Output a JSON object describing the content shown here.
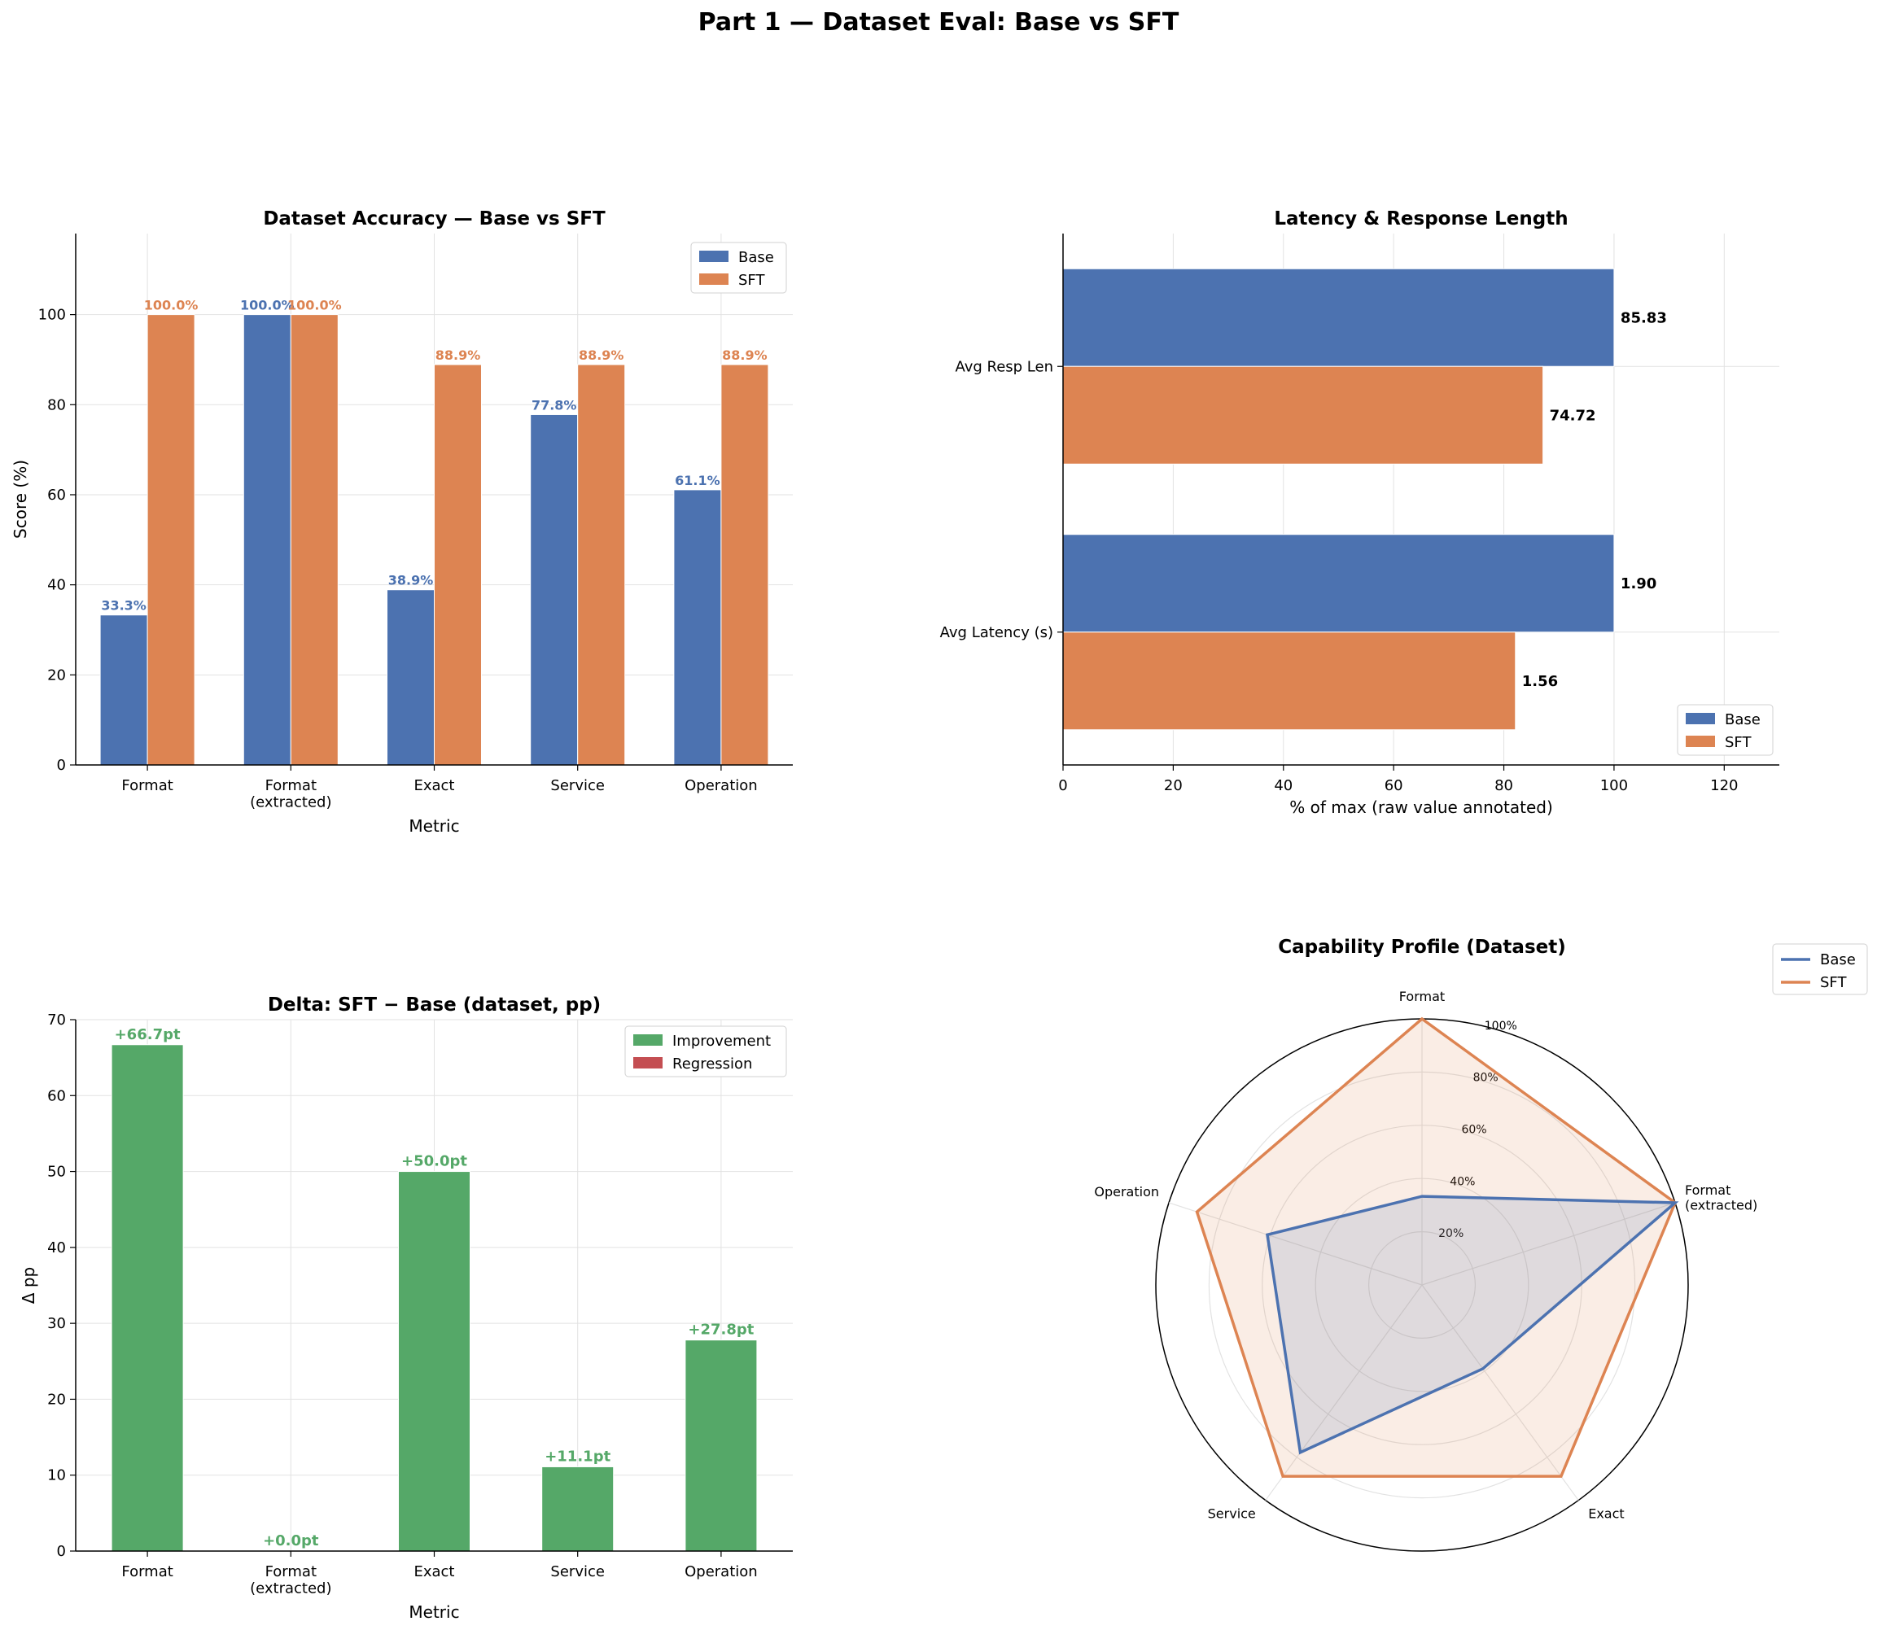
{
  "suptitle": "Part 1 — Dataset Eval: Base vs SFT",
  "colors": {
    "base": "#4c72b0",
    "sft": "#dd8452",
    "improvement": "#55a868",
    "regression": "#c44e52"
  },
  "chart_data": [
    {
      "id": "accuracy",
      "type": "bar",
      "title": "Dataset Accuracy — Base vs SFT",
      "xlabel": "Metric",
      "ylabel": "Score (%)",
      "categories": [
        "Format",
        "Format\n(extracted)",
        "Exact",
        "Service",
        "Operation"
      ],
      "series": [
        {
          "name": "Base",
          "values": [
            33.3,
            100.0,
            38.9,
            77.8,
            61.1
          ],
          "labels": [
            "33.3%",
            "100.0%",
            "38.9%",
            "77.8%",
            "61.1%"
          ]
        },
        {
          "name": "SFT",
          "values": [
            100.0,
            100.0,
            88.9,
            88.9,
            88.9
          ],
          "labels": [
            "100.0%",
            "100.0%",
            "88.9%",
            "88.9%",
            "88.9%"
          ]
        }
      ],
      "ylim": [
        0,
        118
      ],
      "yticks": [
        0,
        20,
        40,
        60,
        80,
        100
      ],
      "grid": true,
      "legend": "upper right"
    },
    {
      "id": "latency",
      "type": "bar",
      "orientation": "horizontal",
      "title": "Latency & Response Length",
      "xlabel": "% of max (raw value annotated)",
      "categories": [
        "Avg Latency (s)",
        "Avg Resp Len"
      ],
      "series": [
        {
          "name": "Base",
          "values": [
            100.0,
            100.0
          ],
          "labels": [
            "1.90",
            "85.83"
          ]
        },
        {
          "name": "SFT",
          "values": [
            82.1,
            87.1
          ],
          "labels": [
            "1.56",
            "74.72"
          ]
        }
      ],
      "xlim": [
        0,
        130
      ],
      "xticks": [
        0,
        20,
        40,
        60,
        80,
        100,
        120
      ],
      "grid": true,
      "legend": "lower right"
    },
    {
      "id": "delta",
      "type": "bar",
      "title": "Delta: SFT − Base (dataset, pp)",
      "xlabel": "Metric",
      "ylabel": "Δ pp",
      "categories": [
        "Format",
        "Format\n(extracted)",
        "Exact",
        "Service",
        "Operation"
      ],
      "values": [
        66.7,
        0.0,
        50.0,
        11.1,
        27.8
      ],
      "labels": [
        "+66.7pt",
        "+0.0pt",
        "+50.0pt",
        "+11.1pt",
        "+27.8pt"
      ],
      "legend_entries": [
        "Improvement",
        "Regression"
      ],
      "ylim": [
        0,
        70
      ],
      "yticks": [
        0,
        10,
        20,
        30,
        40,
        50,
        60,
        70
      ],
      "grid": true,
      "legend": "upper right"
    },
    {
      "id": "radar",
      "type": "radar",
      "title": "Capability Profile (Dataset)",
      "axes": [
        "Format",
        "Format\n(extracted)",
        "Exact",
        "Service",
        "Operation"
      ],
      "series": [
        {
          "name": "Base",
          "values": [
            33.3,
            100.0,
            38.9,
            77.8,
            61.1
          ]
        },
        {
          "name": "SFT",
          "values": [
            100.0,
            100.0,
            88.9,
            88.9,
            88.9
          ]
        }
      ],
      "rlim": [
        0,
        100
      ],
      "rticks": [
        20,
        40,
        60,
        80,
        100
      ],
      "rtick_labels": [
        "20%",
        "40%",
        "60%",
        "80%",
        "100%"
      ],
      "legend": "upper right outside"
    }
  ]
}
